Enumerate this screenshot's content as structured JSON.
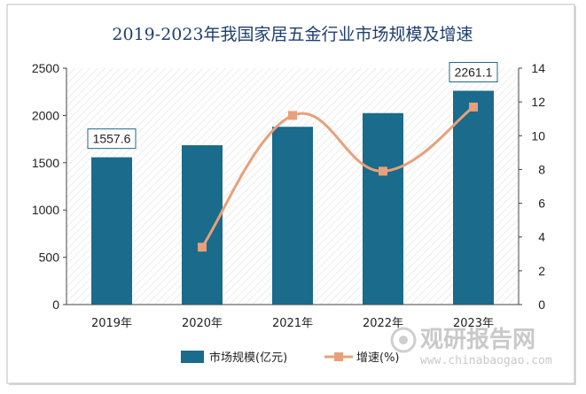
{
  "chart_data": {
    "type": "bar",
    "title": "2019-2023年我国家居五金行业市场规模及增速",
    "categories": [
      "2019年",
      "2020年",
      "2021年",
      "2022年",
      "2023年"
    ],
    "series": [
      {
        "name": "市场规模(亿元)",
        "type": "bar",
        "axis": "left",
        "values": [
          1557.6,
          1685,
          1880,
          2025,
          2261.1
        ],
        "color": "#1a6b8c"
      },
      {
        "name": "增速(%)",
        "type": "line",
        "axis": "right",
        "values": [
          null,
          3.4,
          11.2,
          7.9,
          11.7
        ],
        "color": "#e8a07a"
      }
    ],
    "ylim_left": [
      0,
      2500
    ],
    "ylim_right": [
      0,
      14
    ],
    "yticks_left": [
      0,
      500,
      1000,
      1500,
      2000,
      2500
    ],
    "yticks_right": [
      0,
      2,
      4,
      6,
      8,
      10,
      12,
      14
    ],
    "data_labels": [
      {
        "index": 0,
        "text": "1557.6"
      },
      {
        "index": 4,
        "text": "2261.1"
      }
    ],
    "legend": "bottom-center",
    "grid": false
  },
  "watermark": {
    "cn": "观研报告网",
    "en": "www.chinabaogao.com"
  }
}
